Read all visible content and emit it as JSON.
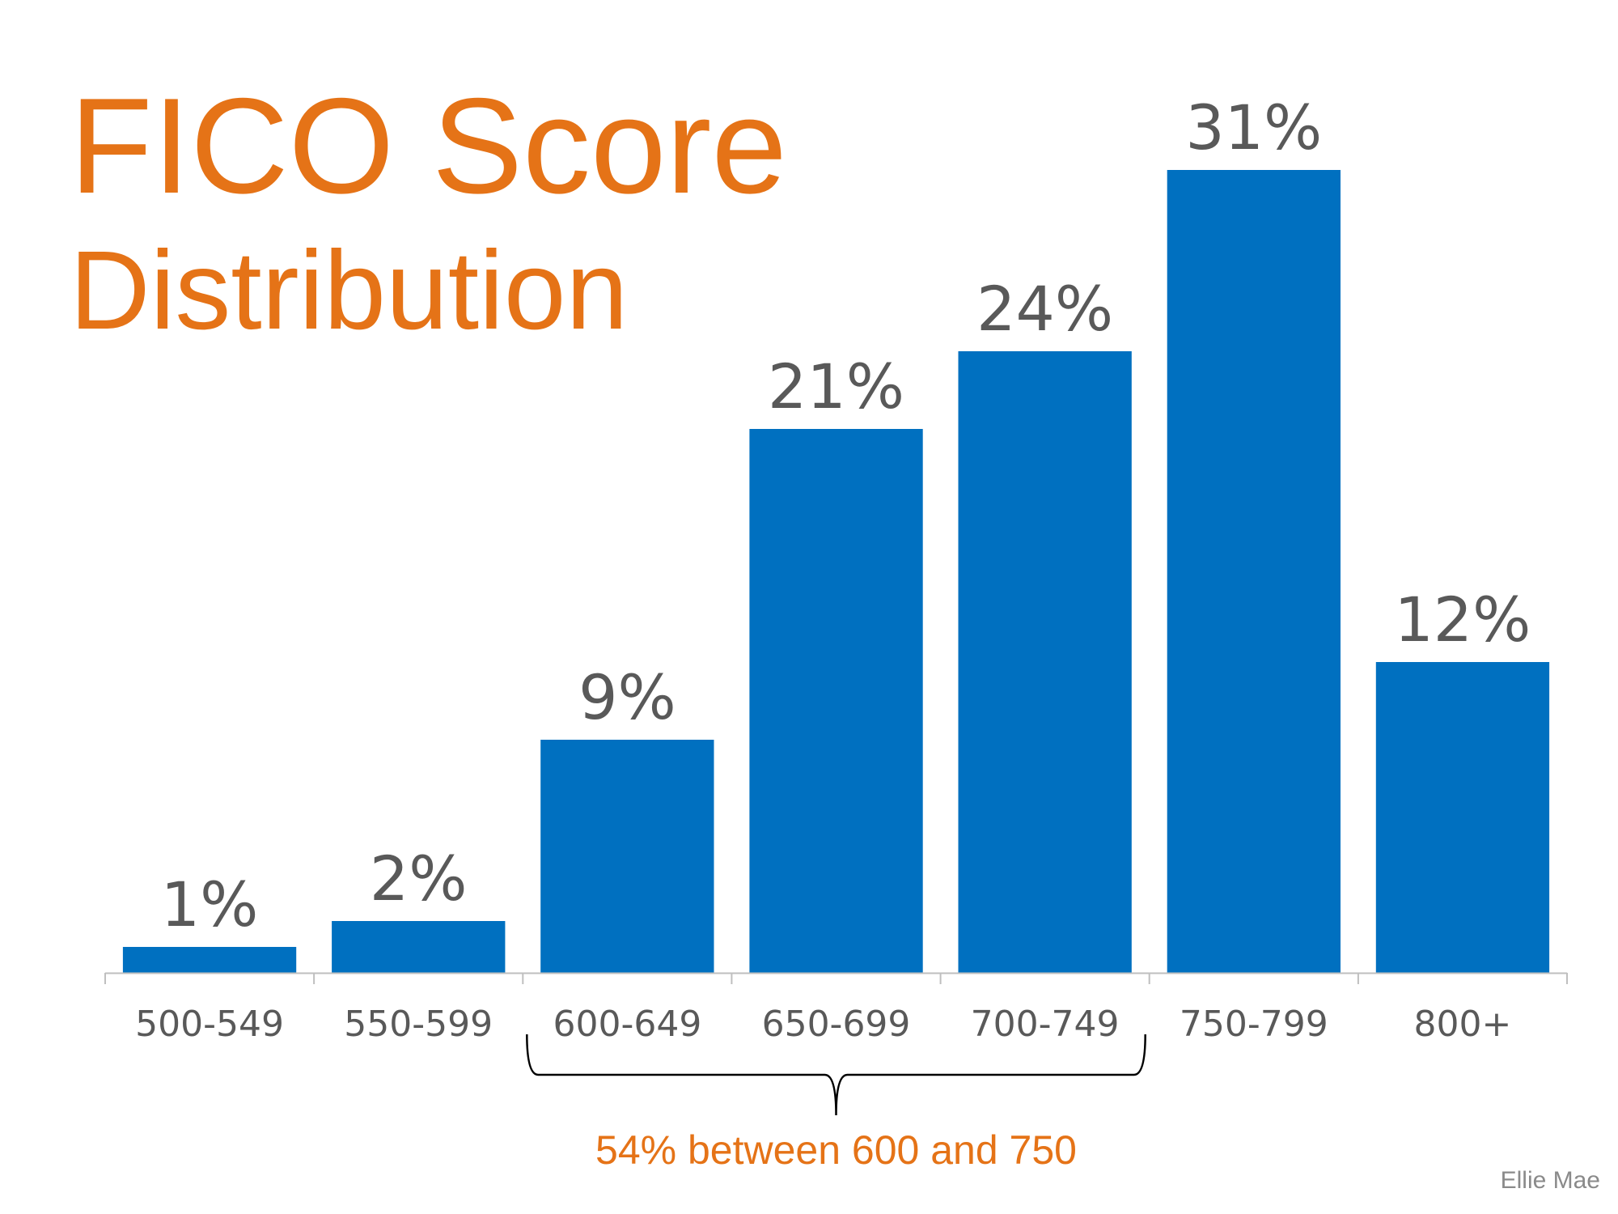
{
  "title": {
    "line1": "FICO Score",
    "line2": "Distribution"
  },
  "colors": {
    "title": "#E57317",
    "bar": "#0070C0",
    "text": "#595959",
    "axis": "#BFBFBF",
    "annotation": "#E57317",
    "source": "#8a8a8a"
  },
  "chart_data": {
    "type": "bar",
    "categories": [
      "500-549",
      "550-599",
      "600-649",
      "650-699",
      "700-749",
      "750-799",
      "800+"
    ],
    "values": [
      1,
      2,
      9,
      21,
      24,
      31,
      12
    ],
    "value_labels": [
      "1%",
      "2%",
      "9%",
      "21%",
      "24%",
      "31%",
      "12%"
    ],
    "ylim": [
      0,
      31
    ],
    "grid": false,
    "legend": "none",
    "annotation": {
      "text": "54% between 600 and 750",
      "bracket_from": "600-649",
      "bracket_to": "700-749"
    }
  },
  "source": "Ellie Mae"
}
